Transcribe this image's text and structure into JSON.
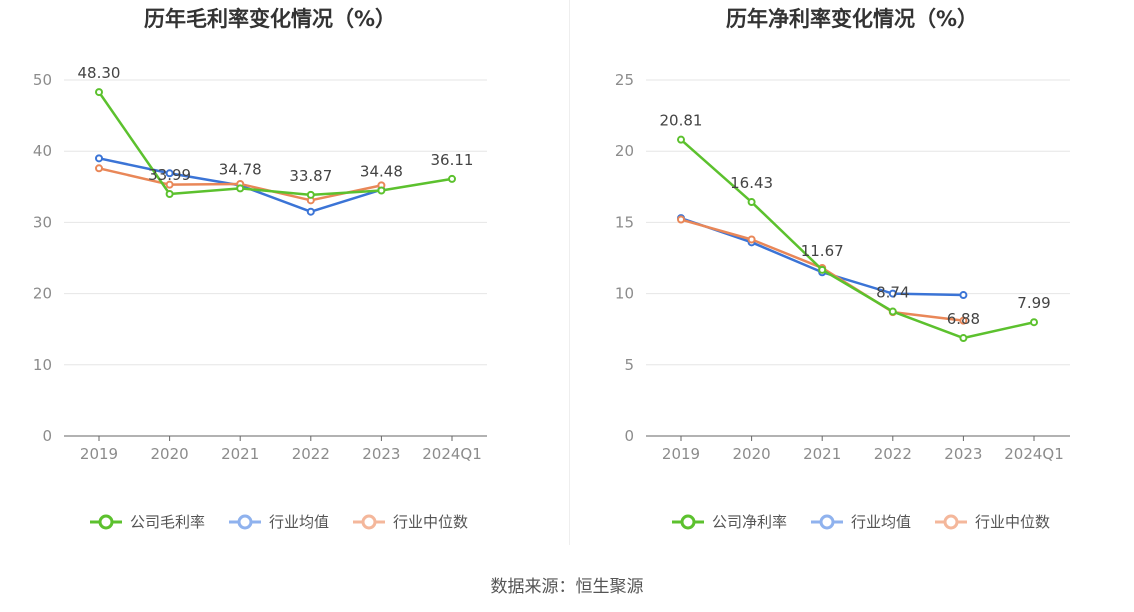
{
  "colors": {
    "company": "#5cc12e",
    "industry_avg": "#3b74d6",
    "industry_median": "#e98758",
    "legend_avg": "#8fb2ee",
    "legend_median": "#f4b79b",
    "axis": "#666666",
    "tick_label": "#8c8c8c",
    "grid": "#e6e6e6",
    "title": "#333333"
  },
  "source": "数据来源：恒生聚源",
  "chart_data": [
    {
      "type": "line",
      "title": "历年毛利率变化情况（%）",
      "categories": [
        "2019",
        "2020",
        "2021",
        "2022",
        "2023",
        "2024Q1"
      ],
      "ylim": [
        0,
        50
      ],
      "yticks": [
        0,
        10,
        20,
        30,
        40,
        50
      ],
      "grid": true,
      "legend_position": "bottom-center",
      "series": [
        {
          "name": "公司毛利率",
          "key": "company",
          "values": [
            48.3,
            33.99,
            34.78,
            33.87,
            34.48,
            36.11
          ],
          "labels": [
            "48.30",
            "33.99",
            "34.78",
            "33.87",
            "34.48",
            "36.11"
          ]
        },
        {
          "name": "行业均值",
          "key": "industry_avg",
          "values": [
            39.0,
            36.9,
            35.2,
            31.5,
            34.6,
            null
          ]
        },
        {
          "name": "行业中位数",
          "key": "industry_median",
          "values": [
            37.6,
            35.3,
            35.4,
            33.1,
            35.2,
            null
          ]
        }
      ]
    },
    {
      "type": "line",
      "title": "历年净利率变化情况（%）",
      "categories": [
        "2019",
        "2020",
        "2021",
        "2022",
        "2023",
        "2024Q1"
      ],
      "ylim": [
        0,
        25
      ],
      "yticks": [
        0,
        5,
        10,
        15,
        20,
        25
      ],
      "grid": true,
      "legend_position": "bottom-center",
      "series": [
        {
          "name": "公司净利率",
          "key": "company",
          "values": [
            20.81,
            16.43,
            11.67,
            8.74,
            6.88,
            7.99
          ],
          "labels": [
            "20.81",
            "16.43",
            "11.67",
            "8.74",
            "6.88",
            "7.99"
          ]
        },
        {
          "name": "行业均值",
          "key": "industry_avg",
          "values": [
            15.3,
            13.6,
            11.5,
            10.0,
            9.9,
            null
          ]
        },
        {
          "name": "行业中位数",
          "key": "industry_median",
          "values": [
            15.2,
            13.8,
            11.8,
            8.7,
            8.1,
            null
          ]
        }
      ]
    }
  ]
}
